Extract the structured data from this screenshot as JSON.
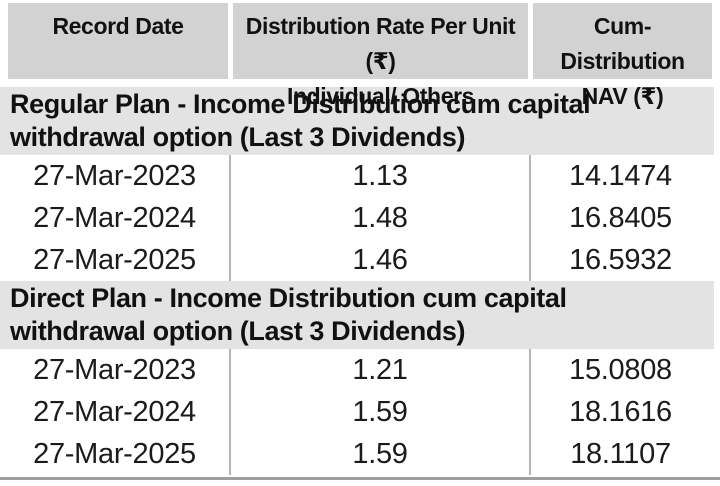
{
  "table": {
    "header": {
      "col1": "Record Date",
      "col2_line1": "Distribution Rate Per Unit (₹)",
      "col2_line2": "Individual/ Others",
      "col3_line1": "Cum-Distribution",
      "col3_line2": "NAV (₹)"
    },
    "sections": [
      {
        "title": "Regular Plan - Income Distribution cum capital withdrawal option (Last 3 Dividends)",
        "rows": [
          {
            "record_date": "27-Mar-2023",
            "rate": "1.13",
            "nav": "14.1474"
          },
          {
            "record_date": "27-Mar-2024",
            "rate": "1.48",
            "nav": "16.8405"
          },
          {
            "record_date": "27-Mar-2025",
            "rate": "1.46",
            "nav": "16.5932"
          }
        ]
      },
      {
        "title": "Direct Plan - Income Distribution cum capital withdrawal option (Last 3 Dividends)",
        "rows": [
          {
            "record_date": "27-Mar-2023",
            "rate": "1.21",
            "nav": "15.0808"
          },
          {
            "record_date": "27-Mar-2024",
            "rate": "1.59",
            "nav": "18.1616"
          },
          {
            "record_date": "27-Mar-2025",
            "rate": "1.59",
            "nav": "18.1107"
          }
        ]
      }
    ],
    "colors": {
      "header_bg": "#d2d2d2",
      "section_bg": "#e3e3e3",
      "column_divider": "#b5b5b5",
      "bottom_border": "#9e9e9e",
      "text": "#111111"
    }
  }
}
